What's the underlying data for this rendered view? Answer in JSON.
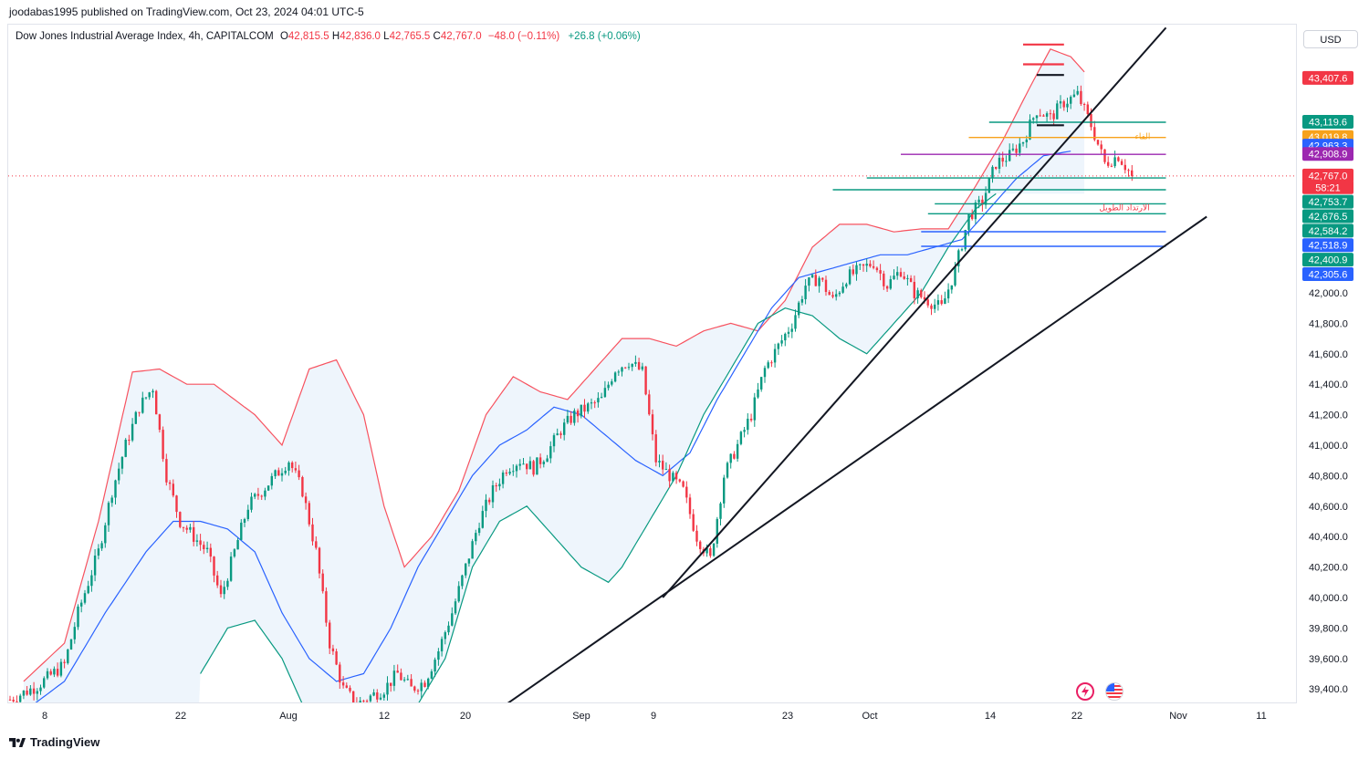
{
  "header": {
    "published_line": "joodabas1995 published on TradingView.com, Oct 23, 2024 04:01 UTC-5"
  },
  "legend": {
    "symbol": "Dow Jones Industrial Average Index, 4h, CAPITALCOM",
    "open_label": "O",
    "open": "42,815.5",
    "high_label": "H",
    "high": "42,836.0",
    "low_label": "L",
    "low": "42,765.5",
    "close_label": "C",
    "close": "42,767.0",
    "change": "−48.0 (−0.11%)",
    "extra": "+26.8 (+0.06%)"
  },
  "currency": "USD",
  "footer": {
    "brand": "TradingView"
  },
  "annotations": {
    "fib_label_top": "الفاء",
    "fib_label_bottom": "الارتداد الطويل"
  },
  "colors": {
    "up": "#089981",
    "down": "#f23645",
    "upper_band": "#f7525f",
    "mid_band": "#2962ff",
    "lower_band": "#089981",
    "band_fill": "#e8f1fb",
    "trendline": "#131722"
  },
  "chart_data": {
    "type": "candlestick",
    "symbol": "Dow Jones Industrial Average Index",
    "timeframe": "4h",
    "y_axis": {
      "ticks": [
        "39,400.0",
        "39,600.0",
        "39,800.0",
        "40,000.0",
        "40,200.0",
        "40,400.0",
        "40,600.0",
        "40,800.0",
        "41,000.0",
        "41,200.0",
        "41,400.0",
        "41,600.0",
        "41,800.0",
        "42,000.0"
      ],
      "range": [
        39300,
        43700
      ]
    },
    "x_axis": {
      "ticks": [
        "8",
        "22",
        "Aug",
        "12",
        "20",
        "Sep",
        "9",
        "23",
        "Oct",
        "14",
        "22",
        "Nov",
        "11"
      ]
    },
    "price_path": [
      [
        0,
        39330
      ],
      [
        4,
        39420
      ],
      [
        8,
        39560
      ],
      [
        10,
        39900
      ],
      [
        13,
        40300
      ],
      [
        15,
        40700
      ],
      [
        17,
        41000
      ],
      [
        19,
        41250
      ],
      [
        21,
        41380
      ],
      [
        23,
        40800
      ],
      [
        25,
        40500
      ],
      [
        27,
        40400
      ],
      [
        29,
        40300
      ],
      [
        31,
        40000
      ],
      [
        33,
        40300
      ],
      [
        35,
        40600
      ],
      [
        37,
        40700
      ],
      [
        39,
        40800
      ],
      [
        41,
        40900
      ],
      [
        43,
        40700
      ],
      [
        45,
        40300
      ],
      [
        47,
        39700
      ],
      [
        49,
        39400
      ],
      [
        51,
        39300
      ],
      [
        53,
        39350
      ],
      [
        55,
        39400
      ],
      [
        57,
        39500
      ],
      [
        59,
        39400
      ],
      [
        61,
        39450
      ],
      [
        63,
        39650
      ],
      [
        65,
        39900
      ],
      [
        67,
        40200
      ],
      [
        69,
        40500
      ],
      [
        71,
        40700
      ],
      [
        73,
        40850
      ],
      [
        75,
        40900
      ],
      [
        77,
        40850
      ],
      [
        79,
        40950
      ],
      [
        81,
        41100
      ],
      [
        83,
        41200
      ],
      [
        85,
        41250
      ],
      [
        87,
        41300
      ],
      [
        89,
        41500
      ],
      [
        91,
        41550
      ],
      [
        93,
        41480
      ],
      [
        95,
        40900
      ],
      [
        97,
        40800
      ],
      [
        99,
        40700
      ],
      [
        101,
        40400
      ],
      [
        103,
        40250
      ],
      [
        105,
        40800
      ],
      [
        107,
        41000
      ],
      [
        109,
        41200
      ],
      [
        111,
        41500
      ],
      [
        113,
        41650
      ],
      [
        115,
        41800
      ],
      [
        117,
        42050
      ],
      [
        119,
        42100
      ],
      [
        121,
        41950
      ],
      [
        123,
        42100
      ],
      [
        125,
        42150
      ],
      [
        127,
        42200
      ],
      [
        129,
        42050
      ],
      [
        131,
        42150
      ],
      [
        133,
        42000
      ],
      [
        135,
        41950
      ],
      [
        137,
        41900
      ],
      [
        139,
        42150
      ],
      [
        141,
        42500
      ],
      [
        143,
        42600
      ],
      [
        145,
        42850
      ],
      [
        147,
        42900
      ],
      [
        149,
        43000
      ],
      [
        151,
        43200
      ],
      [
        153,
        43150
      ],
      [
        155,
        43250
      ],
      [
        157,
        43300
      ],
      [
        159,
        43100
      ],
      [
        161,
        42850
      ],
      [
        163,
        42900
      ],
      [
        165,
        42770
      ]
    ],
    "upper_band_path": [
      [
        2,
        39450
      ],
      [
        8,
        39700
      ],
      [
        13,
        40500
      ],
      [
        18,
        41480
      ],
      [
        22,
        41500
      ],
      [
        26,
        41400
      ],
      [
        30,
        41400
      ],
      [
        36,
        41200
      ],
      [
        40,
        41000
      ],
      [
        44,
        41500
      ],
      [
        48,
        41560
      ],
      [
        52,
        41200
      ],
      [
        55,
        40600
      ],
      [
        58,
        40200
      ],
      [
        62,
        40400
      ],
      [
        66,
        40700
      ],
      [
        70,
        41200
      ],
      [
        74,
        41450
      ],
      [
        78,
        41350
      ],
      [
        82,
        41300
      ],
      [
        86,
        41500
      ],
      [
        90,
        41700
      ],
      [
        94,
        41700
      ],
      [
        98,
        41650
      ],
      [
        102,
        41750
      ],
      [
        106,
        41800
      ],
      [
        110,
        41750
      ],
      [
        114,
        41950
      ],
      [
        118,
        42300
      ],
      [
        122,
        42450
      ],
      [
        126,
        42450
      ],
      [
        130,
        42400
      ],
      [
        134,
        42420
      ],
      [
        138,
        42420
      ],
      [
        142,
        42700
      ],
      [
        146,
        43000
      ],
      [
        150,
        43350
      ],
      [
        153,
        43600
      ],
      [
        156,
        43550
      ],
      [
        158,
        43450
      ]
    ],
    "mid_band_path": [
      [
        2,
        39250
      ],
      [
        8,
        39450
      ],
      [
        14,
        39900
      ],
      [
        20,
        40300
      ],
      [
        24,
        40500
      ],
      [
        28,
        40500
      ],
      [
        32,
        40450
      ],
      [
        36,
        40300
      ],
      [
        40,
        39900
      ],
      [
        44,
        39600
      ],
      [
        48,
        39450
      ],
      [
        52,
        39500
      ],
      [
        56,
        39800
      ],
      [
        60,
        40200
      ],
      [
        64,
        40500
      ],
      [
        68,
        40800
      ],
      [
        72,
        41000
      ],
      [
        76,
        41100
      ],
      [
        80,
        41250
      ],
      [
        84,
        41200
      ],
      [
        88,
        41050
      ],
      [
        92,
        40900
      ],
      [
        96,
        40800
      ],
      [
        100,
        40950
      ],
      [
        104,
        41300
      ],
      [
        108,
        41600
      ],
      [
        112,
        41900
      ],
      [
        116,
        42100
      ],
      [
        120,
        42150
      ],
      [
        124,
        42200
      ],
      [
        128,
        42250
      ],
      [
        132,
        42250
      ],
      [
        136,
        42300
      ],
      [
        140,
        42350
      ],
      [
        144,
        42550
      ],
      [
        148,
        42750
      ],
      [
        152,
        42900
      ],
      [
        156,
        42930
      ]
    ],
    "lower_band_path": [
      [
        28,
        39500
      ],
      [
        32,
        39800
      ],
      [
        36,
        39850
      ],
      [
        40,
        39600
      ],
      [
        44,
        39200
      ],
      [
        60,
        39300
      ],
      [
        64,
        39600
      ],
      [
        68,
        40200
      ],
      [
        72,
        40500
      ],
      [
        76,
        40600
      ],
      [
        80,
        40400
      ],
      [
        84,
        40200
      ],
      [
        88,
        40100
      ],
      [
        90,
        40200
      ],
      [
        94,
        40500
      ],
      [
        98,
        40800
      ],
      [
        102,
        41200
      ],
      [
        106,
        41500
      ],
      [
        110,
        41800
      ],
      [
        114,
        41900
      ],
      [
        118,
        41850
      ],
      [
        122,
        41700
      ],
      [
        126,
        41600
      ],
      [
        130,
        41800
      ],
      [
        134,
        42000
      ],
      [
        138,
        42300
      ],
      [
        142,
        42550
      ],
      [
        145,
        42650
      ]
    ],
    "horizontal_levels": [
      {
        "price": 43630,
        "color": "#f23645",
        "from": 149,
        "to": 155
      },
      {
        "price": 43500,
        "color": "#f23645",
        "from": 149,
        "to": 155
      },
      {
        "price": 43430,
        "color": "#131722",
        "from": 151,
        "to": 155
      },
      {
        "price": 43100,
        "color": "#131722",
        "from": 151,
        "to": 155
      },
      {
        "price": 43119.6,
        "color": "#089981",
        "from": 144,
        "to": 170
      },
      {
        "price": 43019.8,
        "color": "#f7a21b",
        "from": 141,
        "to": 170
      },
      {
        "price": 42908.9,
        "color": "#9c27b0",
        "from": 131,
        "to": 170
      },
      {
        "price": 42753.7,
        "color": "#089981",
        "from": 126,
        "to": 170
      },
      {
        "price": 42676.5,
        "color": "#089981",
        "from": 121,
        "to": 170
      },
      {
        "price": 42584.2,
        "color": "#089981",
        "from": 136,
        "to": 170
      },
      {
        "price": 42518.9,
        "color": "#089981",
        "from": 135,
        "to": 170
      },
      {
        "price": 42400.9,
        "color": "#2962ff",
        "from": 134,
        "to": 170
      },
      {
        "price": 42305.6,
        "color": "#2962ff",
        "from": 134,
        "to": 170
      }
    ],
    "price_labels": [
      {
        "text": "43,407.6",
        "price": 43407.6,
        "bg": "#f23645"
      },
      {
        "text": "43,119.6",
        "price": 43119.6,
        "bg": "#089981"
      },
      {
        "text": "43,019.8",
        "price": 43019.8,
        "bg": "#f7a21b"
      },
      {
        "text": "42,963.3",
        "price": 42963.3,
        "bg": "#2962ff"
      },
      {
        "text": "42,908.9",
        "price": 42908.9,
        "bg": "#9c27b0"
      },
      {
        "text": "42,767.0",
        "price": 42767.0,
        "bg": "#f23645"
      },
      {
        "text": "58:21",
        "price": 42690,
        "bg": "#f23645"
      },
      {
        "text": "42,753.7",
        "price": 42595,
        "bg": "#089981"
      },
      {
        "text": "42,676.5",
        "price": 42500,
        "bg": "#089981"
      },
      {
        "text": "42,584.2",
        "price": 42405,
        "bg": "#089981"
      },
      {
        "text": "42,518.9",
        "price": 42310,
        "bg": "#2962ff"
      },
      {
        "text": "42,400.9",
        "price": 42215,
        "bg": "#089981"
      },
      {
        "text": "42,305.6",
        "price": 42120,
        "bg": "#2962ff"
      }
    ],
    "trendlines": [
      {
        "from": [
          96,
          40000
        ],
        "to": [
          170,
          43740
        ]
      },
      {
        "from": [
          73,
          39300
        ],
        "to": [
          176,
          42500
        ]
      }
    ],
    "last_close": 42767.0
  }
}
